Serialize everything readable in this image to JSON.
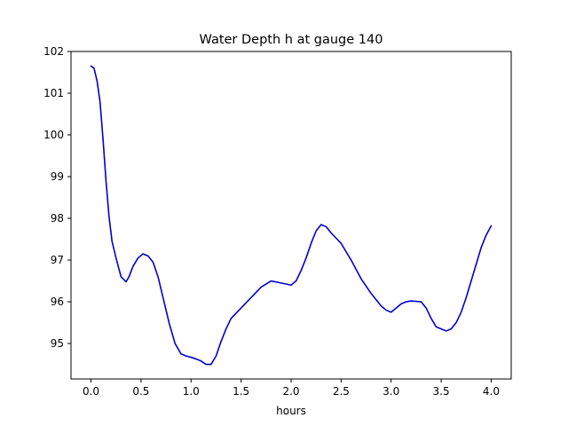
{
  "chart_data": {
    "type": "line",
    "title": "Water Depth h at gauge 140",
    "xlabel": "hours",
    "ylabel": "",
    "xlim": [
      -0.2,
      4.2
    ],
    "ylim": [
      94.15,
      102.0
    ],
    "xticks": [
      0.0,
      0.5,
      1.0,
      1.5,
      2.0,
      2.5,
      3.0,
      3.5,
      4.0
    ],
    "xtick_labels": [
      "0.0",
      "0.5",
      "1.0",
      "1.5",
      "2.0",
      "2.5",
      "3.0",
      "3.5",
      "4.0"
    ],
    "yticks": [
      95,
      96,
      97,
      98,
      99,
      100,
      101,
      102
    ],
    "ytick_labels": [
      "95",
      "96",
      "97",
      "98",
      "99",
      "100",
      "101",
      "102"
    ],
    "grid": false,
    "legend": false,
    "series": [
      {
        "color": "#0000cc",
        "x": [
          0.0,
          0.03,
          0.06,
          0.09,
          0.12,
          0.15,
          0.18,
          0.21,
          0.25,
          0.3,
          0.35,
          0.38,
          0.42,
          0.47,
          0.52,
          0.57,
          0.62,
          0.67,
          0.72,
          0.78,
          0.84,
          0.9,
          0.95,
          1.0,
          1.05,
          1.1,
          1.15,
          1.2,
          1.25,
          1.3,
          1.35,
          1.4,
          1.5,
          1.6,
          1.7,
          1.8,
          1.9,
          2.0,
          2.05,
          2.1,
          2.15,
          2.2,
          2.25,
          2.3,
          2.35,
          2.4,
          2.5,
          2.6,
          2.7,
          2.8,
          2.9,
          2.95,
          3.0,
          3.05,
          3.1,
          3.15,
          3.2,
          3.3,
          3.35,
          3.4,
          3.45,
          3.5,
          3.55,
          3.6,
          3.65,
          3.7,
          3.75,
          3.8,
          3.85,
          3.9,
          3.95,
          4.0
        ],
        "y": [
          101.65,
          101.6,
          101.3,
          100.8,
          99.9,
          98.9,
          98.05,
          97.45,
          97.05,
          96.6,
          96.48,
          96.6,
          96.85,
          97.05,
          97.15,
          97.1,
          96.95,
          96.6,
          96.1,
          95.5,
          95.0,
          94.75,
          94.7,
          94.67,
          94.63,
          94.58,
          94.5,
          94.5,
          94.7,
          95.05,
          95.35,
          95.6,
          95.85,
          96.1,
          96.35,
          96.5,
          96.45,
          96.4,
          96.5,
          96.75,
          97.05,
          97.4,
          97.7,
          97.85,
          97.8,
          97.65,
          97.4,
          97.0,
          96.55,
          96.2,
          95.9,
          95.8,
          95.75,
          95.85,
          95.95,
          96.0,
          96.02,
          96.0,
          95.85,
          95.6,
          95.4,
          95.35,
          95.3,
          95.35,
          95.5,
          95.75,
          96.1,
          96.5,
          96.9,
          97.3,
          97.6,
          97.82
        ]
      }
    ]
  }
}
